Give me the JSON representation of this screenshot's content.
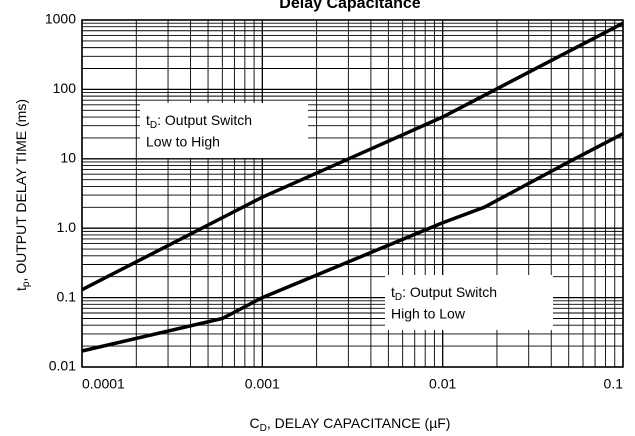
{
  "chart_data": {
    "type": "line",
    "title": "Delay Capacitance",
    "x_label": [
      "C",
      "D",
      ", DELAY CAPACITANCE (µF)"
    ],
    "y_label": [
      "t",
      "p",
      ", OUTPUT DELAY TIME (ms)"
    ],
    "log_x": true,
    "log_y": true,
    "grid": "minor",
    "xlim": [
      0.0001,
      0.1
    ],
    "ylim": [
      0.01,
      1000
    ],
    "xticks": [
      {
        "value": 0.0001,
        "label": "0.0001"
      },
      0.001,
      0.01,
      0.1
    ],
    "yticks": [
      0.01,
      0.1,
      {
        "value": 1,
        "label": "1.0"
      },
      10,
      100,
      1000
    ],
    "series": [
      {
        "name": [
          "t",
          "D",
          ": Output Switch",
          "Low to High"
        ],
        "color": "#000000",
        "x": [
          0.0001,
          0.001,
          0.01,
          0.1
        ],
        "values": [
          0.13,
          2.8,
          40,
          900
        ]
      },
      {
        "name": [
          "t",
          "D",
          ": Output Switch",
          "High to Low"
        ],
        "color": "#000000",
        "x": [
          0.0001,
          0.0006,
          0.001,
          0.01,
          0.017,
          0.05,
          0.1
        ],
        "values": [
          0.017,
          0.05,
          0.1,
          1.2,
          2,
          9,
          23
        ]
      }
    ]
  }
}
